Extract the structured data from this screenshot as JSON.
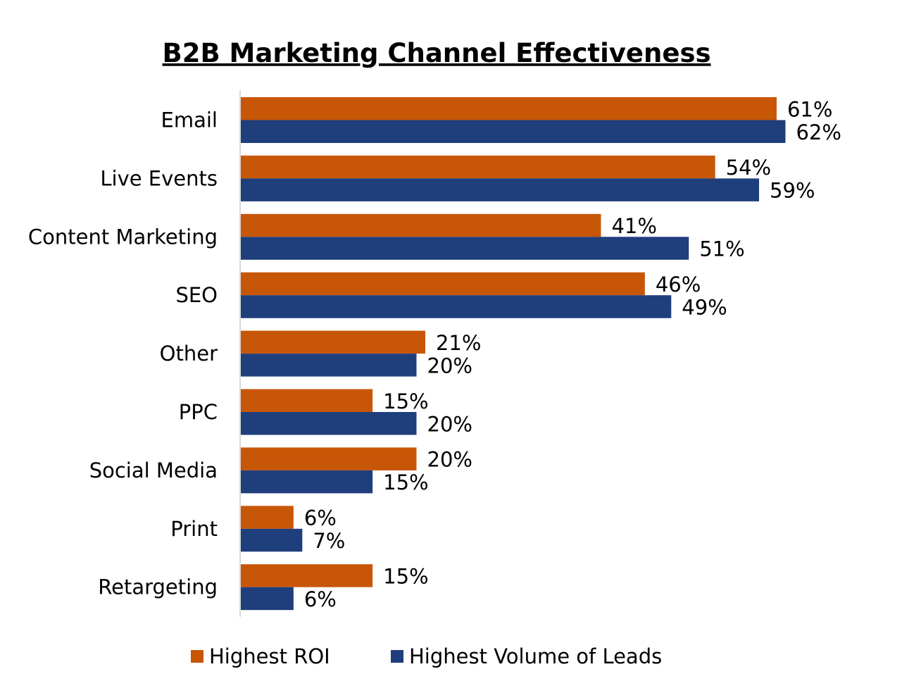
{
  "chart_data": {
    "type": "bar",
    "orientation": "horizontal",
    "title": "B2B Marketing Channel Effectiveness",
    "categories": [
      "Email",
      "Live Events",
      "Content Marketing",
      "SEO",
      "Other",
      "PPC",
      "Social Media",
      "Print",
      "Retargeting"
    ],
    "series": [
      {
        "name": "Highest ROI",
        "color": "#C85607",
        "values": [
          61,
          54,
          41,
          46,
          21,
          15,
          20,
          6,
          15
        ]
      },
      {
        "name": "Highest Volume of Leads",
        "color": "#1F3E7C",
        "values": [
          62,
          59,
          51,
          49,
          20,
          20,
          15,
          7,
          6
        ]
      }
    ],
    "value_format": "percent",
    "xlim": [
      0,
      75
    ],
    "grid": false,
    "legend": "bottom",
    "data_labels": true
  }
}
